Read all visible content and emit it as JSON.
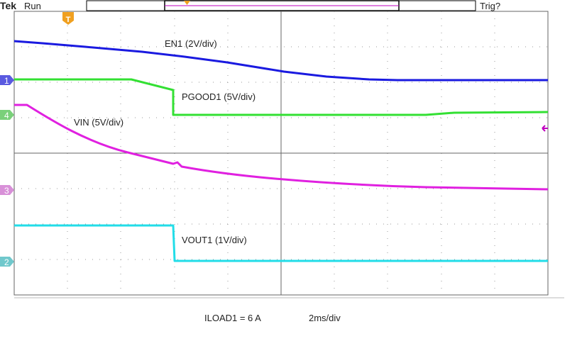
{
  "header": {
    "brand": "Tek",
    "status": "Run",
    "trigger": "Trig?"
  },
  "trigger_marker": "T",
  "channels": [
    {
      "marker": "1",
      "label": "EN1 (2V/div)"
    },
    {
      "marker": "4",
      "label": "PGOOD1 (5V/div)"
    },
    {
      "marker": "3",
      "label": "VIN (5V/div)"
    },
    {
      "marker": "2",
      "label": "VOUT1 (1V/div)"
    }
  ],
  "footer": {
    "load": "ILOAD1 = 6 A",
    "timebase": "2ms/div"
  }
}
